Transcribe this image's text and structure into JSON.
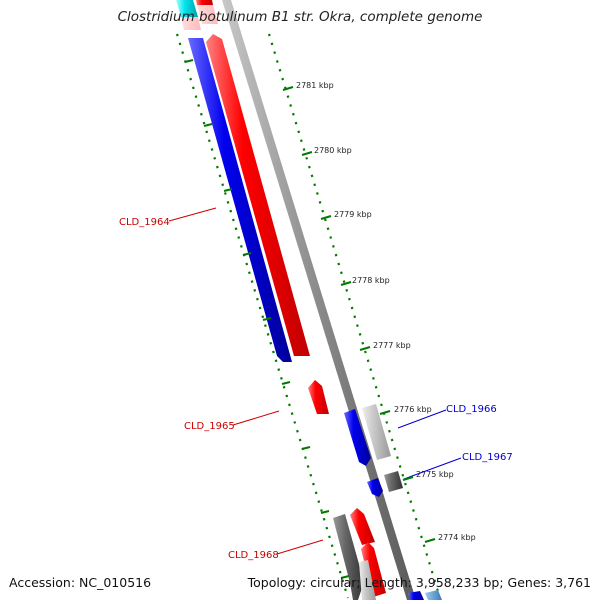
{
  "title": "Clostridium botulinum B1 str. Okra, complete genome",
  "footer": {
    "accession": "Accession: NC_010516",
    "topology": "Topology: circular; Length: 3,958,233 bp; Genes: 3,761"
  },
  "ticks": [
    "2781 kbp",
    "2780 kbp",
    "2779 kbp",
    "2778 kbp",
    "2777 kbp",
    "2776 kbp",
    "2775 kbp",
    "2774 kbp"
  ],
  "gene_labels": [
    {
      "text": "CLD_1964",
      "color": "#cc0000"
    },
    {
      "text": "CLD_1965",
      "color": "#cc0000"
    },
    {
      "text": "CLD_1966",
      "color": "#0000cc"
    },
    {
      "text": "CLD_1967",
      "color": "#0000cc"
    },
    {
      "text": "CLD_1968",
      "color": "#cc0000"
    }
  ],
  "colors": {
    "forward": "#ff0000",
    "reverse": "#0000ee",
    "tick": "#007a00",
    "backbone": "#8a8a8a",
    "gray_gene": "#c0c0c0",
    "dark_gene": "#555555",
    "cyan": "#00e5ee"
  }
}
